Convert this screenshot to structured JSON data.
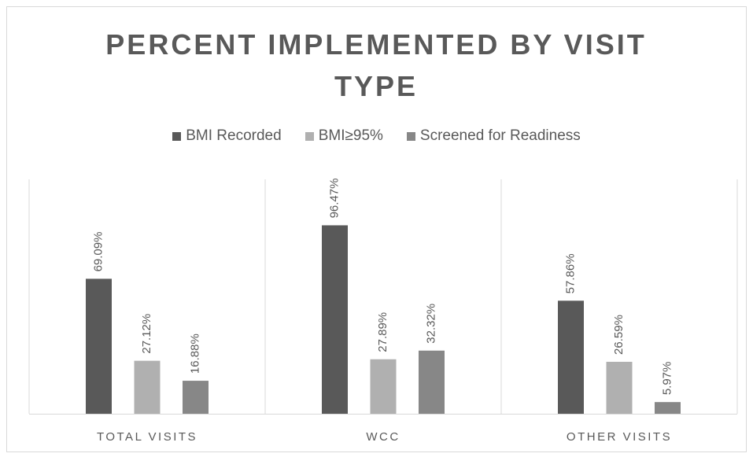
{
  "chart_data": {
    "type": "bar",
    "title": "PERCENT IMPLEMENTED BY VISIT TYPE",
    "categories": [
      "TOTAL VISITS",
      "WCC",
      "OTHER VISITS"
    ],
    "series": [
      {
        "name": "BMI Recorded",
        "color": "#595959",
        "values": [
          69.09,
          96.47,
          57.86
        ],
        "value_labels": [
          "69.09%",
          "96.47%",
          "57.86%"
        ]
      },
      {
        "name": "BMI≥95%",
        "color": "#b0b0b0",
        "values": [
          27.12,
          27.89,
          26.59
        ],
        "value_labels": [
          "27.12%",
          "27.89%",
          "26.59%"
        ]
      },
      {
        "name": "Screened for Readiness",
        "color": "#878787",
        "values": [
          16.88,
          32.32,
          5.97
        ],
        "value_labels": [
          "16.88%",
          "32.32%",
          "5.97%"
        ]
      }
    ],
    "ylim": [
      0,
      120
    ],
    "legend": "top"
  }
}
